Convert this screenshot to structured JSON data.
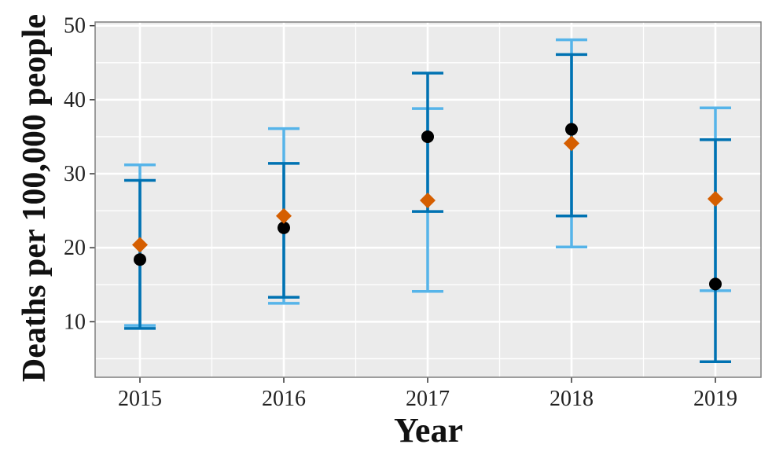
{
  "chart_data": {
    "type": "scatter",
    "title": "",
    "xlabel": "Year",
    "ylabel": "Deaths per 100,000 people",
    "categories": [
      "2015",
      "2016",
      "2017",
      "2018",
      "2019"
    ],
    "yticks": [
      10,
      20,
      30,
      40,
      50
    ],
    "ylim": [
      2.5,
      50.5
    ],
    "grid": true,
    "legend": "none",
    "colors": {
      "panel": "#EBEBEB",
      "grid": "#FFFFFF",
      "error_bar_light": "#56B4E9",
      "error_bar_dark": "#0072B2",
      "point_circle": "#000000",
      "point_diamond": "#D55E00"
    },
    "series": [
      {
        "marker": "circle",
        "values": [
          18.4,
          22.7,
          35.0,
          36.0,
          15.1
        ]
      },
      {
        "marker": "diamond",
        "values": [
          20.4,
          24.3,
          26.4,
          34.1,
          26.6
        ]
      }
    ],
    "error_bars": [
      {
        "shade": "light",
        "low": [
          9.5,
          12.5,
          14.1,
          20.1,
          14.2
        ],
        "high": [
          31.2,
          36.1,
          38.8,
          48.1,
          38.9
        ]
      },
      {
        "shade": "dark",
        "low": [
          9.1,
          13.3,
          24.9,
          24.3,
          4.6
        ],
        "high": [
          29.1,
          31.4,
          43.6,
          46.1,
          34.6
        ]
      }
    ]
  }
}
